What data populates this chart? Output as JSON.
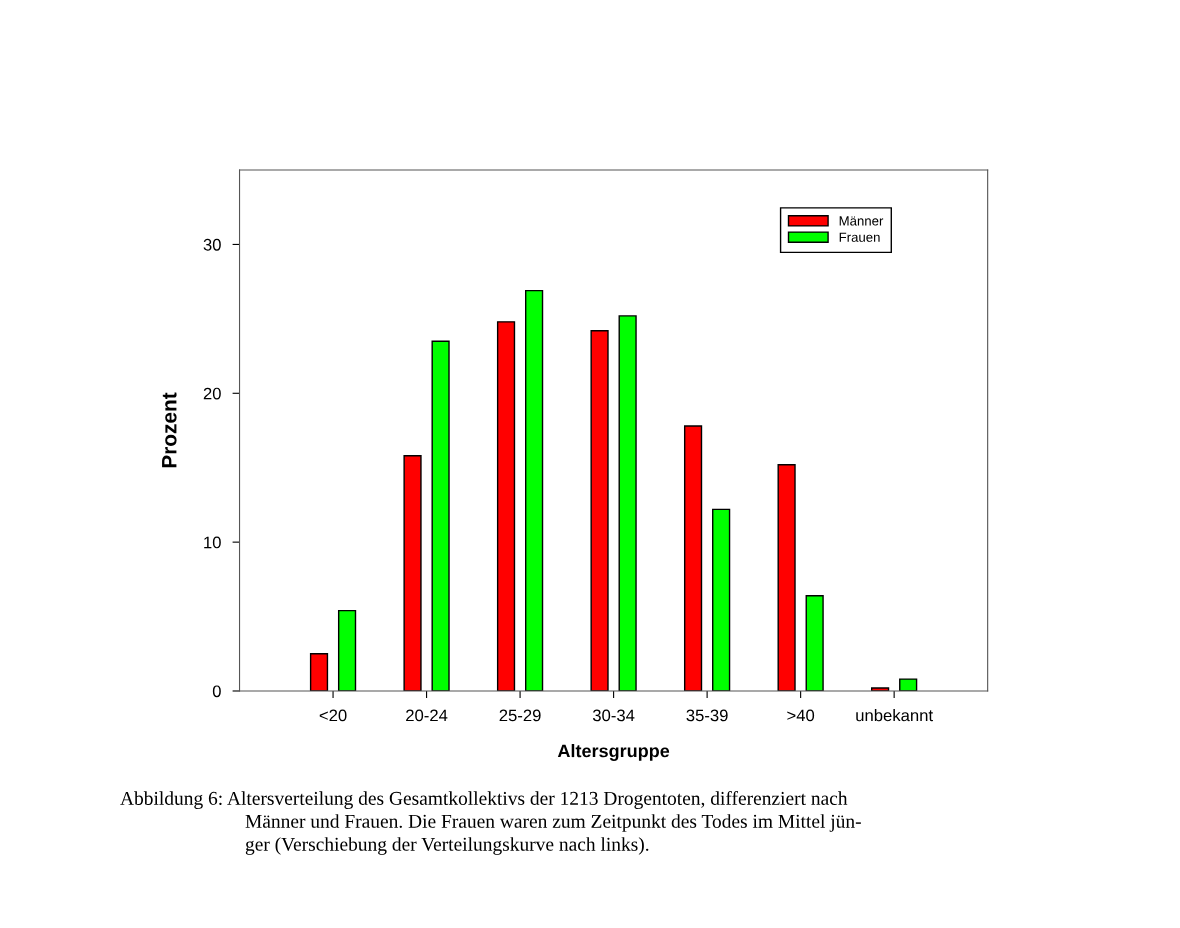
{
  "chart_data": {
    "type": "bar",
    "xlabel": "Altersgruppe",
    "ylabel": "Prozent",
    "categories": [
      "<20",
      "20-24",
      "25-29",
      "30-34",
      "35-39",
      ">40",
      "unbekannt"
    ],
    "series": [
      {
        "name": "Männer",
        "color": "#ff0000",
        "values": [
          2.5,
          15.8,
          24.8,
          24.2,
          17.8,
          15.2,
          0.2
        ]
      },
      {
        "name": "Frauen",
        "color": "#00ff00",
        "values": [
          5.4,
          23.5,
          26.9,
          25.2,
          12.2,
          6.4,
          0.8
        ]
      }
    ],
    "ylim": [
      0,
      35
    ],
    "yticks": [
      0,
      10,
      20,
      30
    ],
    "grid": false,
    "legend": "top right",
    "annotations": [
      "Abbildung 6: Altersverteilung des Gesamtkollektivs der 1213 Drogentoten, differenziert nach\nMänner und Frauen. Die Frauen waren zum Zeitpunkt des Todes im Mittel jün-\nger (Verschiebung der Verteilungskurve nach links)."
    ]
  }
}
